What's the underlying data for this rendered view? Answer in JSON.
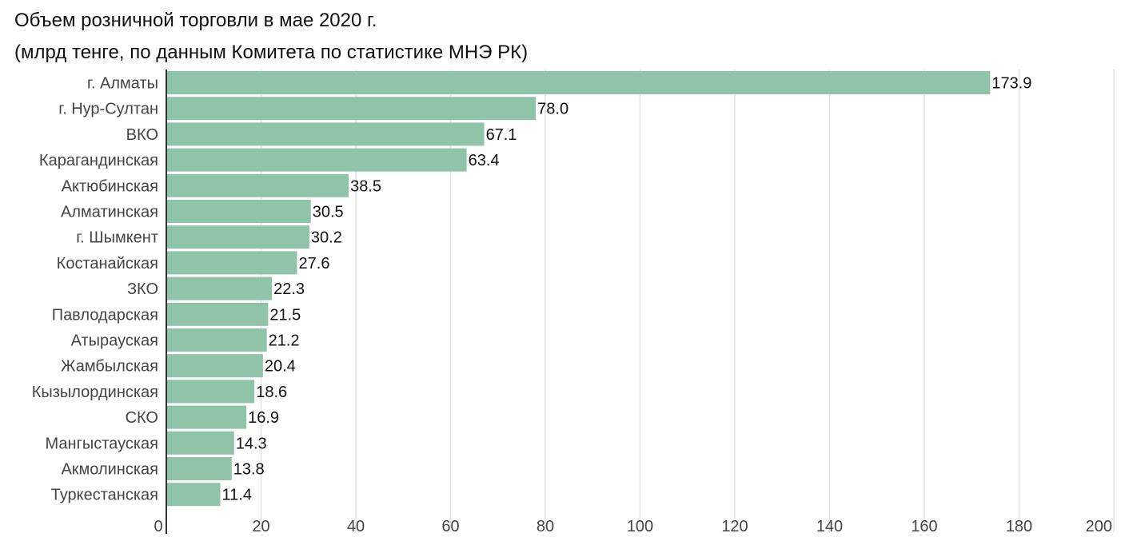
{
  "chart_data": {
    "type": "bar",
    "orientation": "horizontal",
    "title": "Объем розничной торговли в мае 2020 г.",
    "subtitle": "(млрд тенге, по данным Комитета по статистике МНЭ РК)",
    "categories": [
      "г. Алматы",
      "г. Нур-Султан",
      "ВКО",
      "Карагандинская",
      "Актюбинская",
      "Алматинская",
      "г. Шымкент",
      "Костанайская",
      "ЗКО",
      "Павлодарская",
      "Атырауская",
      "Жамбылская",
      "Кызылординская",
      "СКО",
      "Мангыстауская",
      "Акмолинская",
      "Туркестанская"
    ],
    "values": [
      173.9,
      78.0,
      67.1,
      63.4,
      38.5,
      30.5,
      30.2,
      27.6,
      22.3,
      21.5,
      21.2,
      20.4,
      18.6,
      16.9,
      14.3,
      13.8,
      11.4
    ],
    "value_labels": [
      "173.9",
      "78.0",
      "67.1",
      "63.4",
      "38.5",
      "30.5",
      "30.2",
      "27.6",
      "22.3",
      "21.5",
      "21.2",
      "20.4",
      "18.6",
      "16.9",
      "14.3",
      "13.8",
      "11.4"
    ],
    "xticks": [
      0,
      20,
      40,
      60,
      80,
      100,
      120,
      140,
      160,
      180,
      200
    ],
    "xlim": [
      0,
      200
    ],
    "grid": true,
    "bar_color": "#8fc4a8",
    "grid_color": "#e2e2e2",
    "axis_color": "#333333"
  }
}
